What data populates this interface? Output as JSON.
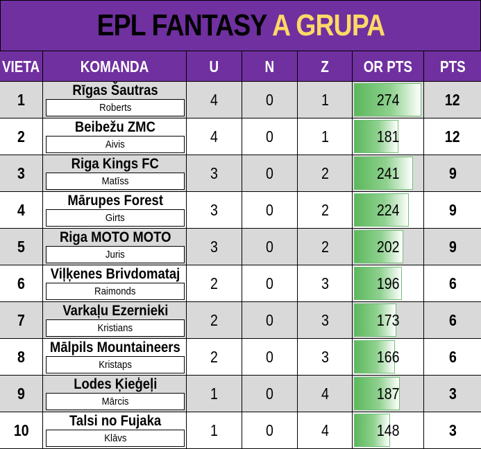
{
  "title": {
    "main": "EPL FANTASY",
    "accent": "A GRUPA"
  },
  "colors": {
    "header_bg": "#7030a0",
    "accent": "#ffd966",
    "bar": "#5cb85c",
    "row_alt": "#d9d9d9"
  },
  "headers": {
    "vieta": "VIETA",
    "komanda": "KOMANDA",
    "u": "U",
    "n": "N",
    "z": "Z",
    "or_pts": "OR PTS",
    "pts": "PTS"
  },
  "or_pts_bar_max": 280,
  "rows": [
    {
      "vieta": "1",
      "team": "Rīgas Šautras",
      "owner": "Roberts",
      "u": "4",
      "n": "0",
      "z": "1",
      "or_pts": 274,
      "pts": "12"
    },
    {
      "vieta": "2",
      "team": "Beibežu ZMC",
      "owner": "Aivis",
      "u": "4",
      "n": "0",
      "z": "1",
      "or_pts": 181,
      "pts": "12"
    },
    {
      "vieta": "3",
      "team": "Riga Kings FC",
      "owner": "Matīss",
      "u": "3",
      "n": "0",
      "z": "2",
      "or_pts": 241,
      "pts": "9"
    },
    {
      "vieta": "4",
      "team": "Mārupes Forest",
      "owner": "Girts",
      "u": "3",
      "n": "0",
      "z": "2",
      "or_pts": 224,
      "pts": "9"
    },
    {
      "vieta": "5",
      "team": "Riga MOTO MOTO",
      "owner": "Juris",
      "u": "3",
      "n": "0",
      "z": "2",
      "or_pts": 202,
      "pts": "9"
    },
    {
      "vieta": "6",
      "team": "Viļķenes Brivdomataj",
      "owner": "Raimonds",
      "u": "2",
      "n": "0",
      "z": "3",
      "or_pts": 196,
      "pts": "6"
    },
    {
      "vieta": "7",
      "team": "Varkaļu Ezernieki",
      "owner": "Kristians",
      "u": "2",
      "n": "0",
      "z": "3",
      "or_pts": 173,
      "pts": "6"
    },
    {
      "vieta": "8",
      "team": "Mālpils Mountaineers",
      "owner": "Kristaps",
      "u": "2",
      "n": "0",
      "z": "3",
      "or_pts": 166,
      "pts": "6"
    },
    {
      "vieta": "9",
      "team": "Lodes Ķieģeļi",
      "owner": "Mārcis",
      "u": "1",
      "n": "0",
      "z": "4",
      "or_pts": 187,
      "pts": "3"
    },
    {
      "vieta": "10",
      "team": "Talsi no Fujaka",
      "owner": "Klāvs",
      "u": "1",
      "n": "0",
      "z": "4",
      "or_pts": 148,
      "pts": "3"
    }
  ]
}
